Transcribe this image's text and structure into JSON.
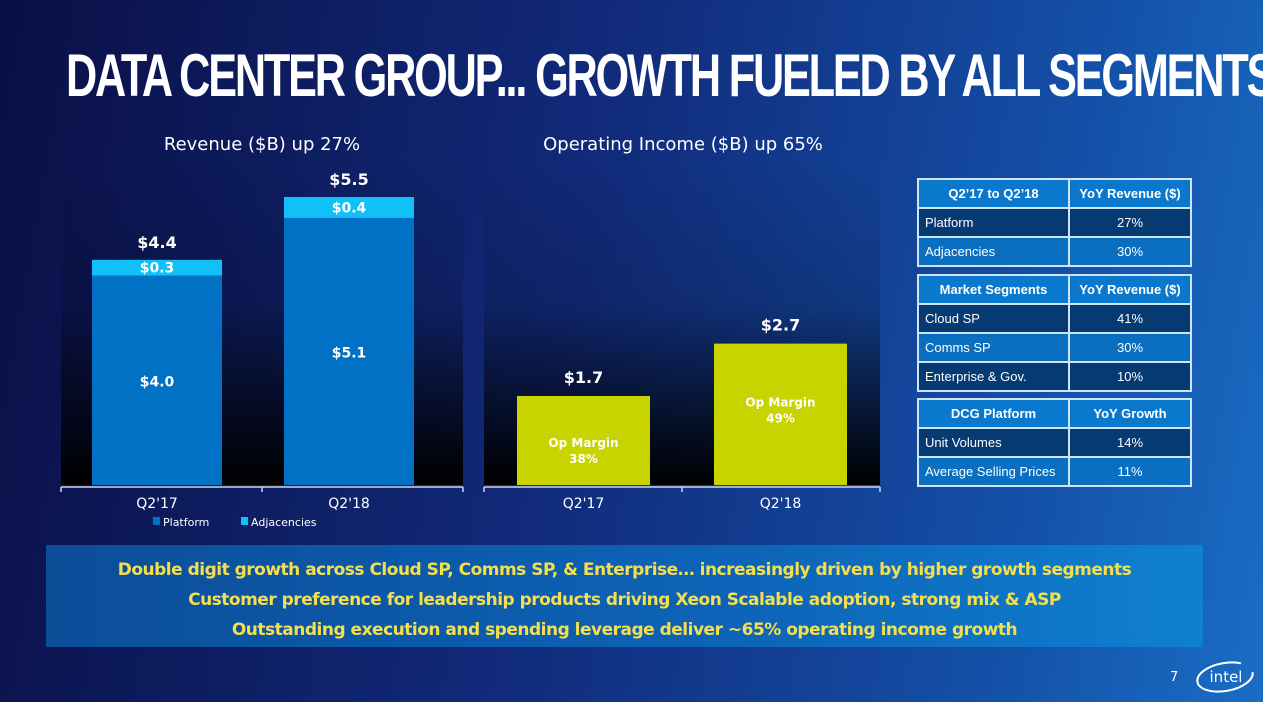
{
  "slide": {
    "title": "DATA CENTER GROUP... GROWTH FUELED BY ALL SEGMENTS",
    "page_number": "7",
    "logo_text": "intel"
  },
  "chart_data": [
    {
      "type": "bar",
      "stacked": true,
      "title": "Revenue ($B) up 27%",
      "categories": [
        "Q2'17",
        "Q2'18"
      ],
      "series": [
        {
          "name": "Platform",
          "values": [
            4.0,
            5.1
          ],
          "labels": [
            "$4.0",
            "$5.1"
          ],
          "color": "#0071c5"
        },
        {
          "name": "Adjacencies",
          "values": [
            0.3,
            0.4
          ],
          "labels": [
            "$0.3",
            "$0.4"
          ],
          "color": "#12c0f8"
        }
      ],
      "totals": [
        4.4,
        5.5
      ],
      "total_labels": [
        "$4.4",
        "$5.5"
      ],
      "ylim": [
        0,
        5.5
      ],
      "legend": [
        "Platform",
        "Adjacencies"
      ],
      "legend_position": "bottom",
      "grid": false
    },
    {
      "type": "bar",
      "title": "Operating Income ($B) up 65%",
      "categories": [
        "Q2'17",
        "Q2'18"
      ],
      "values": [
        1.7,
        2.7
      ],
      "value_labels": [
        "$1.7",
        "$2.7"
      ],
      "annotations": [
        {
          "line1": "Op Margin",
          "line2": "38%"
        },
        {
          "line1": "Op Margin",
          "line2": "49%"
        }
      ],
      "color": "#c8d400",
      "ylim": [
        0,
        5.5
      ],
      "grid": false
    }
  ],
  "tables": [
    {
      "headers": [
        "Q2’17 to Q2’18",
        "YoY Revenue ($)"
      ],
      "rows": [
        [
          "Platform",
          "27%"
        ],
        [
          "Adjacencies",
          "30%"
        ]
      ]
    },
    {
      "headers": [
        "Market Segments",
        "YoY Revenue ($)"
      ],
      "rows": [
        [
          "Cloud SP",
          "41%"
        ],
        [
          "Comms SP",
          "30%"
        ],
        [
          "Enterprise & Gov.",
          "10%"
        ]
      ]
    },
    {
      "headers": [
        "DCG Platform",
        "YoY Growth"
      ],
      "rows": [
        [
          "Unit Volumes",
          "14%"
        ],
        [
          "Average Selling Prices",
          "11%"
        ]
      ]
    }
  ],
  "banner": {
    "lines": [
      "Double digit growth across Cloud SP, Comms SP, & Enterprise… increasingly driven by higher growth segments",
      "Customer preference for leadership products driving Xeon Scalable adoption, strong mix & ASP",
      "Outstanding execution and spending leverage deliver ~65% operating income growth"
    ]
  }
}
